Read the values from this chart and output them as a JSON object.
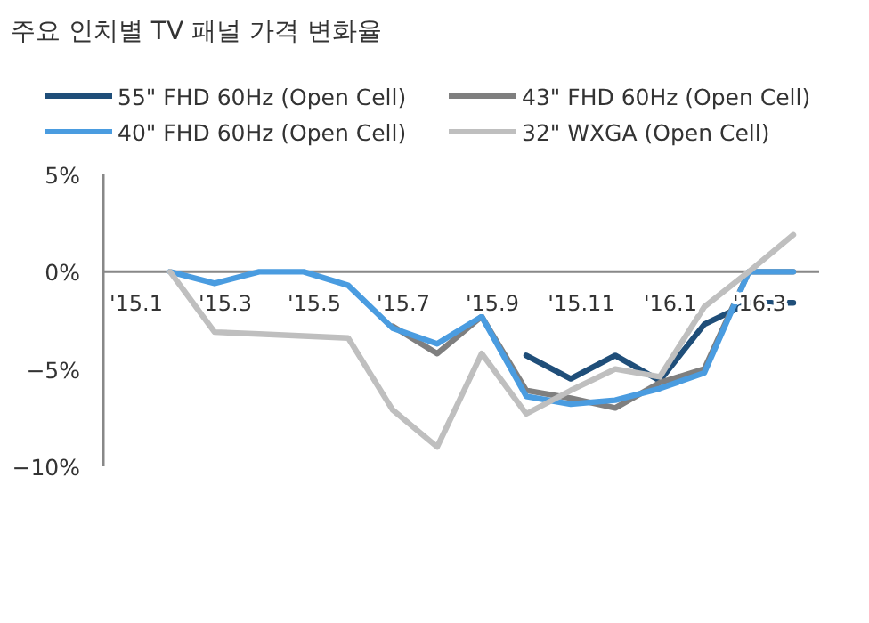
{
  "chart_data": {
    "type": "line",
    "title": "주요 인치별 TV 패널 가격 변화율",
    "categories": [
      "'15.1",
      null,
      "'15.3",
      null,
      "'15.5",
      null,
      "'15.7",
      null,
      "'15.9",
      null,
      "'15.11",
      null,
      "'16.1",
      null,
      "'16.3",
      null
    ],
    "series": [
      {
        "name": "55\" FHD 60Hz (Open Cell)",
        "color": "#1f4e79",
        "values": [
          null,
          null,
          null,
          null,
          null,
          null,
          null,
          null,
          null,
          -4.3,
          -5.5,
          -4.3,
          -5.6,
          -2.7,
          -1.6,
          -1.6
        ]
      },
      {
        "name": "43\" FHD 60Hz (Open Cell)",
        "color": "#7f7f7f",
        "values": [
          null,
          null,
          null,
          null,
          null,
          null,
          -2.8,
          -4.2,
          -2.3,
          -6.1,
          -6.5,
          -7.0,
          -5.7,
          -5.0,
          0,
          0
        ]
      },
      {
        "name": "40\" FHD 60Hz (Open Cell)",
        "color": "#4a9ce0",
        "values": [
          null,
          0,
          -0.6,
          0,
          0,
          -0.7,
          -2.9,
          -3.7,
          -2.3,
          -6.4,
          -6.8,
          -6.6,
          -6.0,
          -5.2,
          0,
          0
        ]
      },
      {
        "name": "32\" WXGA (Open Cell)",
        "color": "#bfbfbf",
        "values": [
          null,
          0,
          -3.1,
          -3.2,
          -3.3,
          -3.4,
          -7.1,
          -9.0,
          -4.2,
          -7.3,
          -6.1,
          -5.0,
          -5.4,
          -1.8,
          0,
          1.9
        ]
      }
    ],
    "ylim": [
      -10,
      5
    ],
    "yticks": [
      {
        "value": 5,
        "label": "5%"
      },
      {
        "value": 0,
        "label": "0%"
      },
      {
        "value": -5,
        "label": "−5%"
      },
      {
        "value": -10,
        "label": "−10%"
      }
    ],
    "legend": "top"
  }
}
